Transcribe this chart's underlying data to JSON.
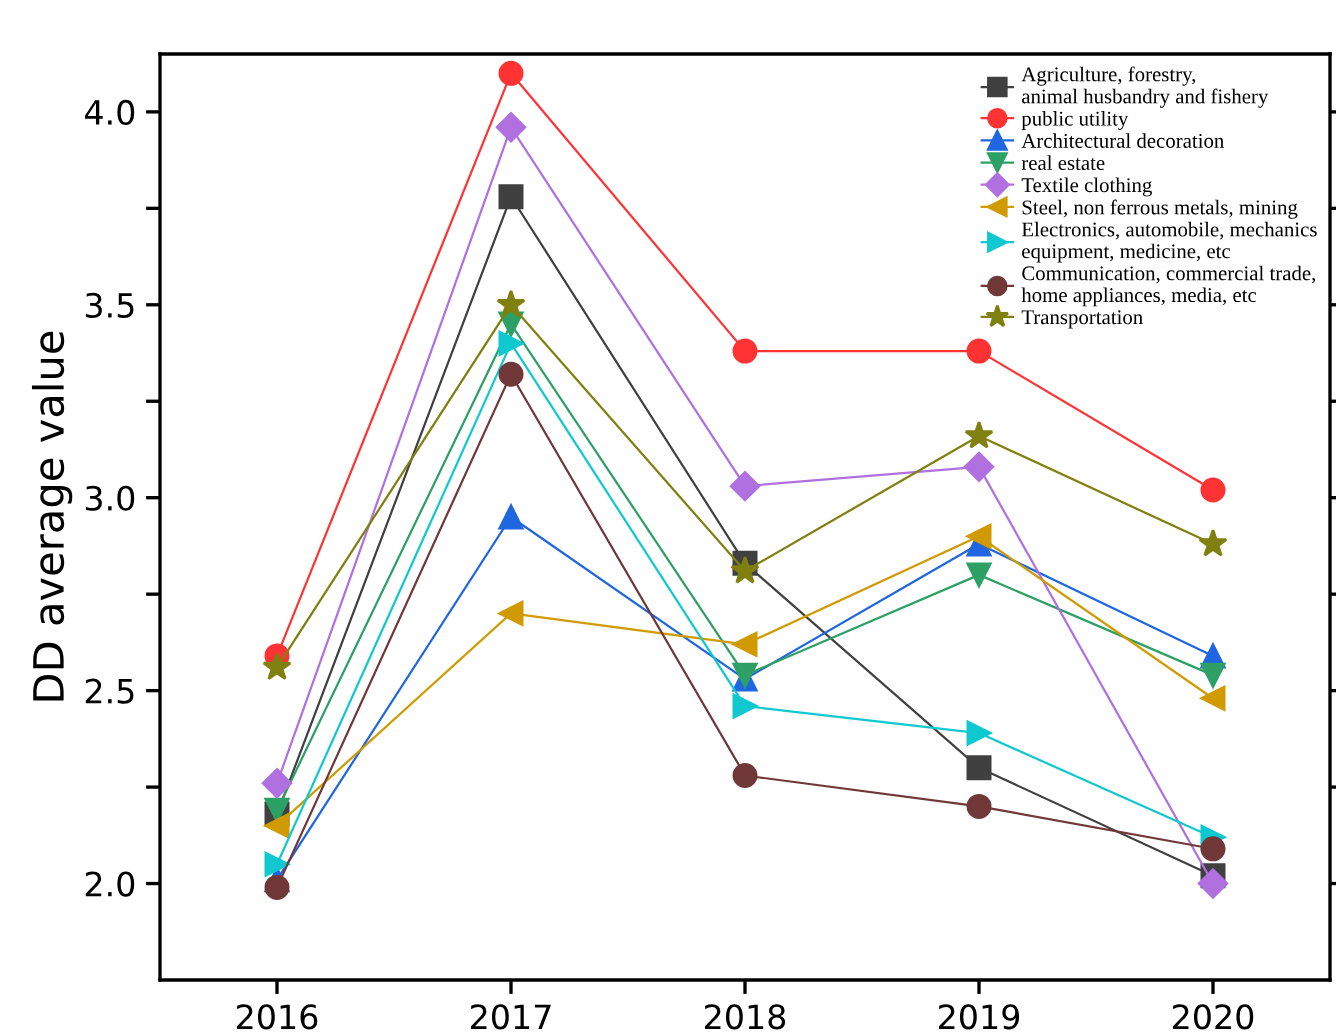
{
  "chart_data": {
    "type": "line",
    "ylabel": "DD average value",
    "x": [
      2016,
      2017,
      2018,
      2019,
      2020
    ],
    "xlim": [
      2015.5,
      2020.5
    ],
    "xticks": [
      2016,
      2017,
      2018,
      2019,
      2020
    ],
    "ylim": [
      1.75,
      4.15
    ],
    "yticks": [
      {
        "value": 2.0,
        "label": "2.0"
      },
      {
        "value": 2.25,
        "label": null
      },
      {
        "value": 2.5,
        "label": "2.5"
      },
      {
        "value": 2.75,
        "label": null
      },
      {
        "value": 3.0,
        "label": "3.0"
      },
      {
        "value": 3.25,
        "label": null
      },
      {
        "value": 3.5,
        "label": "3.5"
      },
      {
        "value": 3.75,
        "label": null
      },
      {
        "value": 4.0,
        "label": "4.0"
      }
    ],
    "grid": false,
    "legend": "top right",
    "line_style": "solid",
    "series": [
      {
        "name": "Agriculture, forestry,\nanimal husbandry and fishery",
        "color": "#404040",
        "marker": "square",
        "values": [
          2.18,
          3.78,
          2.83,
          2.3,
          2.02
        ]
      },
      {
        "name": "public utility",
        "color": "#ff3333",
        "marker": "circle",
        "values": [
          2.59,
          4.1,
          3.38,
          3.38,
          3.02
        ]
      },
      {
        "name": "Architectural decoration",
        "color": "#1f66e0",
        "marker": "triangle",
        "values": [
          2.01,
          2.95,
          2.53,
          2.88,
          2.59
        ]
      },
      {
        "name": "real estate",
        "color": "#2ca065",
        "marker": "triangle_down",
        "values": [
          2.19,
          3.45,
          2.54,
          2.8,
          2.54
        ]
      },
      {
        "name": "Textile clothing",
        "color": "#b070e0",
        "marker": "diamond",
        "values": [
          2.26,
          3.96,
          3.03,
          3.08,
          2.0
        ]
      },
      {
        "name": "Steel, non ferrous metals, mining",
        "color": "#d09a00",
        "marker": "triangle_left",
        "values": [
          2.15,
          2.7,
          2.62,
          2.9,
          2.48
        ]
      },
      {
        "name": "Electronics, automobile, mechanics\nequipment, medicine, etc",
        "color": "#10c8d0",
        "marker": "triangle_right",
        "values": [
          2.05,
          3.4,
          2.46,
          2.39,
          2.12
        ]
      },
      {
        "name": "Communication, commercial trade,\nhome appliances, media, etc",
        "color": "#703838",
        "marker": "circle",
        "values": [
          1.99,
          3.32,
          2.28,
          2.2,
          2.09
        ]
      },
      {
        "name": "Transportation",
        "color": "#808010",
        "marker": "star",
        "values": [
          2.56,
          3.5,
          2.81,
          3.16,
          2.88
        ]
      }
    ]
  }
}
